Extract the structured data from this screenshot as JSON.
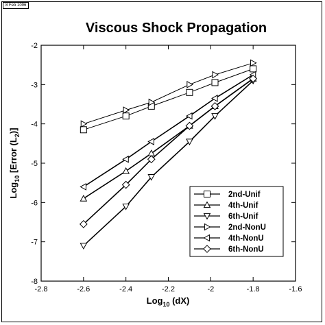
{
  "corner_tag": "8 Feb 1096",
  "chart_data": {
    "type": "line",
    "title": "Viscous Shock Propagation",
    "xlabel": {
      "pre": "Log",
      "sub": "10",
      "post": " (dX)"
    },
    "ylabel": {
      "pre": "Log",
      "sub": "10",
      "mid": " [Error (L",
      "sub2": "2",
      "post": ")]"
    },
    "xlim": [
      -2.8,
      -1.6
    ],
    "ylim": [
      -8,
      -2
    ],
    "xticks": [
      -2.8,
      -2.6,
      -2.4,
      -2.2,
      -2,
      -1.8,
      -1.6
    ],
    "xtick_labels": [
      "-2.8",
      "-2.6",
      "-2.4",
      "-2.2",
      "-2",
      "-1.8",
      "-1.6"
    ],
    "yticks": [
      -8,
      -7,
      -6,
      -5,
      -4,
      -3,
      -2
    ],
    "ytick_labels": [
      "-8",
      "-7",
      "-6",
      "-5",
      "-4",
      "-3",
      "-2"
    ],
    "grid": false,
    "legend_position": "lower-right",
    "series": [
      {
        "name": "2nd-Unif",
        "marker": "square",
        "x": [
          -2.6,
          -2.4,
          -2.28,
          -2.1,
          -1.98,
          -1.8
        ],
        "y": [
          -4.15,
          -3.8,
          -3.55,
          -3.2,
          -2.95,
          -2.6
        ]
      },
      {
        "name": "4th-Unif",
        "marker": "triangle-up",
        "x": [
          -2.6,
          -2.4,
          -2.28,
          -2.1,
          -1.98,
          -1.8
        ],
        "y": [
          -5.9,
          -5.2,
          -4.75,
          -4.05,
          -3.55,
          -2.85
        ]
      },
      {
        "name": "6th-Unif",
        "marker": "triangle-down",
        "x": [
          -2.6,
          -2.4,
          -2.28,
          -2.1,
          -1.98,
          -1.8
        ],
        "y": [
          -7.1,
          -6.1,
          -5.35,
          -4.45,
          -3.8,
          -2.9
        ]
      },
      {
        "name": "2nd-NonU",
        "marker": "triangle-right",
        "x": [
          -2.6,
          -2.4,
          -2.28,
          -2.1,
          -1.98,
          -1.8
        ],
        "y": [
          -4.0,
          -3.65,
          -3.45,
          -3.0,
          -2.75,
          -2.45
        ]
      },
      {
        "name": "4th-NonU",
        "marker": "triangle-left",
        "x": [
          -2.6,
          -2.4,
          -2.28,
          -2.1,
          -1.98,
          -1.8
        ],
        "y": [
          -5.6,
          -4.9,
          -4.45,
          -3.8,
          -3.35,
          -2.75
        ]
      },
      {
        "name": "6th-NonU",
        "marker": "diamond",
        "x": [
          -2.6,
          -2.4,
          -2.28,
          -2.1,
          -1.98,
          -1.8
        ],
        "y": [
          -6.55,
          -5.55,
          -4.9,
          -4.05,
          -3.55,
          -2.85
        ]
      }
    ]
  }
}
